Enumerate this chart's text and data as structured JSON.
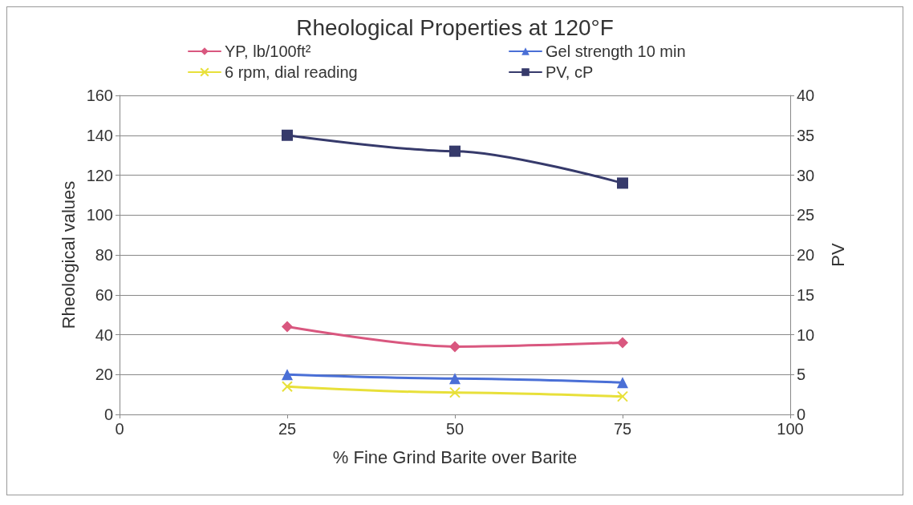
{
  "chart_data": {
    "type": "line",
    "title": "Rheological Properties at 120°F",
    "xlabel": "% Fine Grind Barite over Barite",
    "ylabel": "Rheological values",
    "y2label": "PV",
    "x": [
      25,
      50,
      75
    ],
    "series": [
      {
        "name": "YP, lb/100ft²",
        "color": "#d9577f",
        "marker": "diamond",
        "values": [
          44,
          34,
          36
        ]
      },
      {
        "name": "6 rpm, dial reading",
        "color": "#e8e03a",
        "marker": "cross",
        "values": [
          14,
          11,
          9
        ]
      },
      {
        "name": "Gel strength 10 min",
        "color": "#4a6fd6",
        "marker": "triangle",
        "values": [
          20,
          18,
          16
        ]
      },
      {
        "name": "PV, cP",
        "color": "#363a6b",
        "marker": "square",
        "axis": "y2",
        "values": [
          35,
          33,
          29
        ]
      }
    ],
    "xlim": [
      0,
      100
    ],
    "xticks": [
      0,
      25,
      50,
      75,
      100
    ],
    "ylim": [
      0,
      160
    ],
    "yticks": [
      0,
      20,
      40,
      60,
      80,
      100,
      120,
      140,
      160
    ],
    "y2lim": [
      0,
      40
    ],
    "y2ticks": [
      0,
      5,
      10,
      15,
      20,
      25,
      30,
      35,
      40
    ],
    "grid": "y",
    "legend": "top",
    "line_style": "solid"
  }
}
